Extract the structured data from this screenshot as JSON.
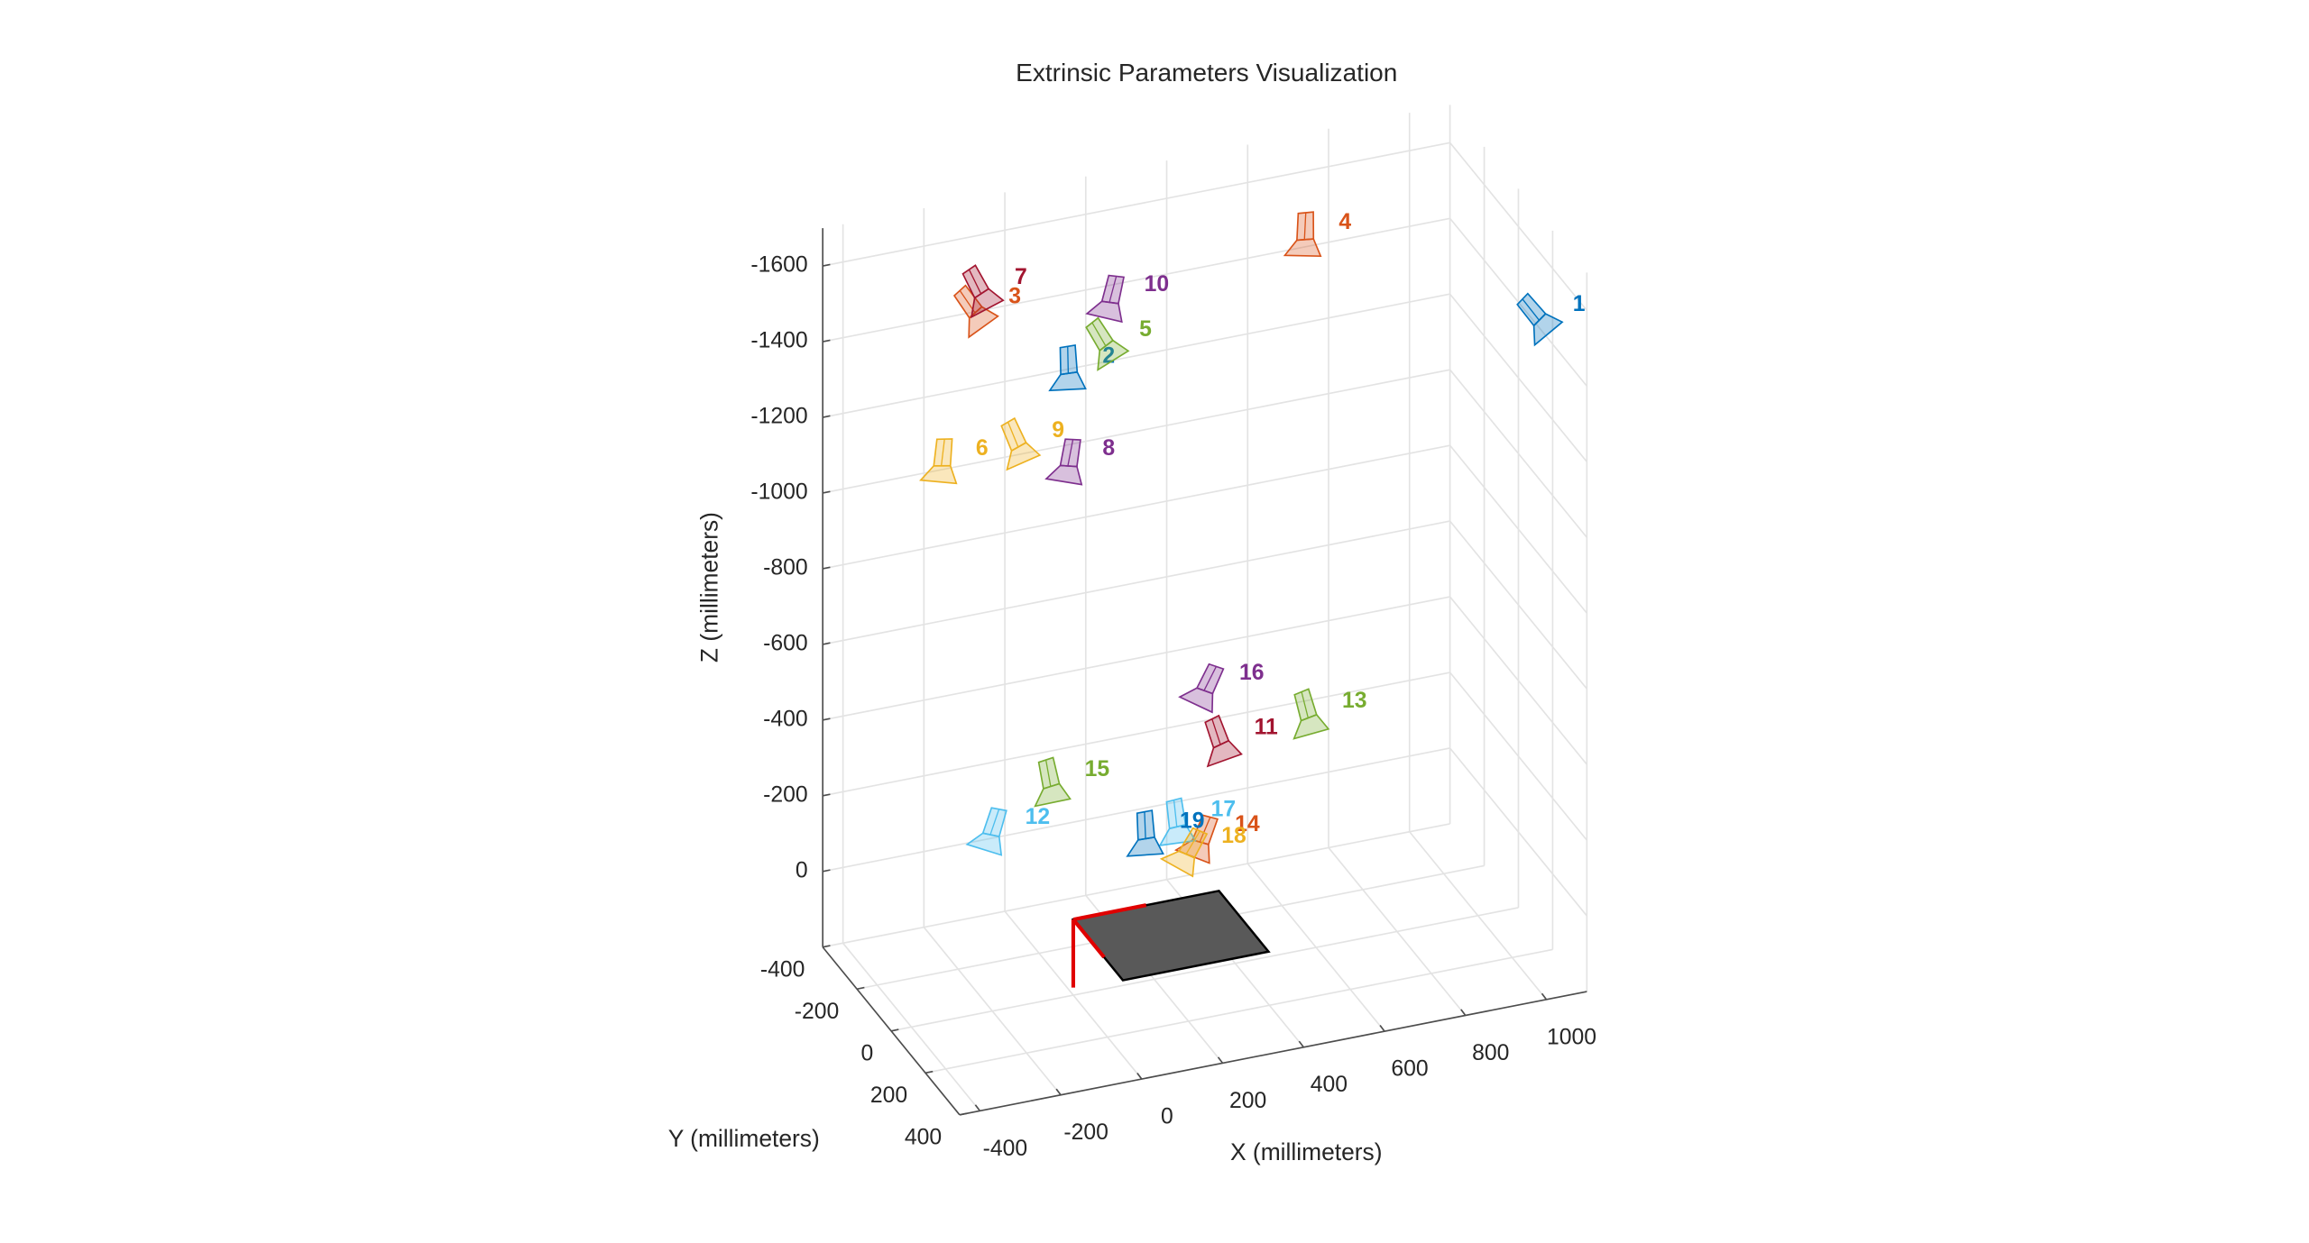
{
  "chart_data": {
    "type": "scatter3",
    "title": "Extrinsic Parameters Visualization",
    "xlabel": "X (millimeters)",
    "ylabel": "Y (millimeters)",
    "zlabel": "Z (millimeters)",
    "xlim": [
      -450,
      1100
    ],
    "ylim": [
      -400,
      400
    ],
    "zlim": [
      -1700,
      200
    ],
    "zdir": "reverse",
    "xticks": [
      -400,
      -200,
      0,
      200,
      400,
      600,
      800,
      1000
    ],
    "yticks": [
      -400,
      -200,
      0,
      200,
      400
    ],
    "zticks": [
      -1600,
      -1400,
      -1200,
      -1000,
      -800,
      -600,
      -400,
      -200,
      0
    ],
    "grid": true,
    "labels": [
      "1",
      "2",
      "3",
      "4",
      "5",
      "6",
      "7",
      "8",
      "9",
      "10",
      "11",
      "12",
      "13",
      "14",
      "15",
      "16",
      "17",
      "18",
      "19"
    ],
    "colors": [
      "#0072BD",
      "#0072BD",
      "#D95319",
      "#D95319",
      "#77AC30",
      "#EDB120",
      "#A2142F",
      "#7E2F8E",
      "#EDB120",
      "#7E2F8E",
      "#A2142F",
      "#4DBEEE",
      "#77AC30",
      "#D95319",
      "#77AC30",
      "#7E2F8E",
      "#4DBEEE",
      "#EDB120",
      "#0072BD"
    ],
    "x": [
      1146,
      -16,
      -248,
      568,
      75,
      -329,
      -233,
      -16,
      -141,
      87,
      359,
      -207,
      576,
      311,
      -60,
      322,
      252,
      278,
      175
    ],
    "y": [
      0,
      0,
      0,
      0,
      0,
      0,
      0,
      0,
      0,
      0,
      0,
      0,
      0,
      0,
      0,
      0,
      0,
      0,
      0
    ],
    "z": [
      -1344,
      -1451,
      -1657,
      -1682,
      -1502,
      -1273,
      -1705,
      -1207,
      -1281,
      -1618,
      -390,
      -273,
      -415,
      -145,
      -368,
      -543,
      -196,
      -120,
      -181
    ],
    "board": {
      "x": [
        0,
        360
      ],
      "y": [
        0,
        290
      ],
      "color": "#595959",
      "axis_length": 180,
      "axis_color": "#E00000"
    }
  }
}
